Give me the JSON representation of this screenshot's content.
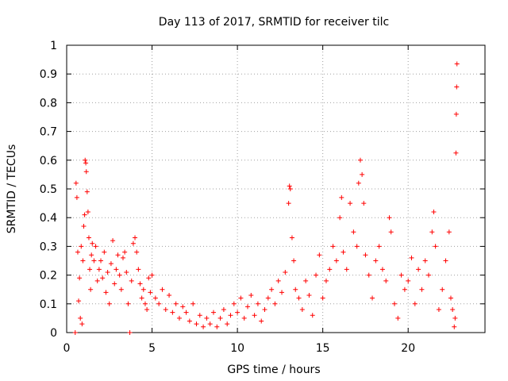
{
  "chart_data": {
    "type": "scatter",
    "title": "Day 113 of 2017, SRMTID for receiver tilc",
    "xlabel": "GPS time / hours",
    "ylabel": "SRMTID / TECUs",
    "xlim": [
      0,
      24.5
    ],
    "ylim": [
      0,
      1
    ],
    "xticks": [
      0,
      5,
      10,
      15,
      20
    ],
    "xtick_labels": [
      "0",
      "5",
      "10",
      "15",
      "20"
    ],
    "yticks": [
      0,
      0.1,
      0.2,
      0.3,
      0.4,
      0.5,
      0.6,
      0.7,
      0.8,
      0.9,
      1
    ],
    "ytick_labels": [
      "0",
      "0.1",
      "0.2",
      "0.3",
      "0.4",
      "0.5",
      "0.6",
      "0.7",
      "0.8",
      "0.9",
      "1"
    ],
    "grid": true,
    "marker": "+",
    "color": "#ff0000",
    "series": [
      {
        "name": "SRMTID",
        "points": [
          [
            0.5,
            0.0
          ],
          [
            0.55,
            0.52
          ],
          [
            0.6,
            0.47
          ],
          [
            0.65,
            0.28
          ],
          [
            0.7,
            0.11
          ],
          [
            0.75,
            0.19
          ],
          [
            0.8,
            0.05
          ],
          [
            0.85,
            0.3
          ],
          [
            0.9,
            0.03
          ],
          [
            0.95,
            0.25
          ],
          [
            1.0,
            0.37
          ],
          [
            1.05,
            0.41
          ],
          [
            1.08,
            0.6
          ],
          [
            1.12,
            0.59
          ],
          [
            1.15,
            0.56
          ],
          [
            1.2,
            0.49
          ],
          [
            1.25,
            0.42
          ],
          [
            1.3,
            0.33
          ],
          [
            1.35,
            0.22
          ],
          [
            1.4,
            0.15
          ],
          [
            1.45,
            0.27
          ],
          [
            1.5,
            0.31
          ],
          [
            1.6,
            0.25
          ],
          [
            1.7,
            0.3
          ],
          [
            1.8,
            0.18
          ],
          [
            1.9,
            0.22
          ],
          [
            2.0,
            0.25
          ],
          [
            2.1,
            0.19
          ],
          [
            2.2,
            0.28
          ],
          [
            2.3,
            0.14
          ],
          [
            2.4,
            0.21
          ],
          [
            2.5,
            0.1
          ],
          [
            2.6,
            0.24
          ],
          [
            2.7,
            0.32
          ],
          [
            2.8,
            0.17
          ],
          [
            2.9,
            0.22
          ],
          [
            3.0,
            0.27
          ],
          [
            3.1,
            0.2
          ],
          [
            3.2,
            0.15
          ],
          [
            3.3,
            0.26
          ],
          [
            3.4,
            0.28
          ],
          [
            3.5,
            0.21
          ],
          [
            3.6,
            0.1
          ],
          [
            3.7,
            0.0
          ],
          [
            3.8,
            0.18
          ],
          [
            3.9,
            0.31
          ],
          [
            4.0,
            0.33
          ],
          [
            4.1,
            0.28
          ],
          [
            4.2,
            0.22
          ],
          [
            4.3,
            0.17
          ],
          [
            4.4,
            0.12
          ],
          [
            4.5,
            0.15
          ],
          [
            4.6,
            0.1
          ],
          [
            4.7,
            0.08
          ],
          [
            4.8,
            0.19
          ],
          [
            4.9,
            0.14
          ],
          [
            5.0,
            0.2
          ],
          [
            5.2,
            0.12
          ],
          [
            5.4,
            0.1
          ],
          [
            5.6,
            0.15
          ],
          [
            5.8,
            0.08
          ],
          [
            6.0,
            0.13
          ],
          [
            6.2,
            0.07
          ],
          [
            6.4,
            0.1
          ],
          [
            6.6,
            0.05
          ],
          [
            6.8,
            0.09
          ],
          [
            7.0,
            0.07
          ],
          [
            7.2,
            0.04
          ],
          [
            7.4,
            0.1
          ],
          [
            7.6,
            0.03
          ],
          [
            7.8,
            0.06
          ],
          [
            8.0,
            0.02
          ],
          [
            8.2,
            0.05
          ],
          [
            8.4,
            0.03
          ],
          [
            8.6,
            0.07
          ],
          [
            8.8,
            0.02
          ],
          [
            9.0,
            0.05
          ],
          [
            9.2,
            0.08
          ],
          [
            9.4,
            0.03
          ],
          [
            9.6,
            0.06
          ],
          [
            9.8,
            0.1
          ],
          [
            10.0,
            0.07
          ],
          [
            10.2,
            0.12
          ],
          [
            10.4,
            0.05
          ],
          [
            10.6,
            0.09
          ],
          [
            10.8,
            0.13
          ],
          [
            11.0,
            0.06
          ],
          [
            11.2,
            0.1
          ],
          [
            11.4,
            0.04
          ],
          [
            11.6,
            0.08
          ],
          [
            11.8,
            0.12
          ],
          [
            12.0,
            0.15
          ],
          [
            12.2,
            0.1
          ],
          [
            12.4,
            0.18
          ],
          [
            12.6,
            0.14
          ],
          [
            12.8,
            0.21
          ],
          [
            13.0,
            0.45
          ],
          [
            13.05,
            0.51
          ],
          [
            13.1,
            0.5
          ],
          [
            13.2,
            0.33
          ],
          [
            13.3,
            0.25
          ],
          [
            13.4,
            0.15
          ],
          [
            13.6,
            0.12
          ],
          [
            13.8,
            0.08
          ],
          [
            14.0,
            0.18
          ],
          [
            14.2,
            0.13
          ],
          [
            14.4,
            0.06
          ],
          [
            14.6,
            0.2
          ],
          [
            14.8,
            0.27
          ],
          [
            15.0,
            0.12
          ],
          [
            15.2,
            0.18
          ],
          [
            15.4,
            0.22
          ],
          [
            15.6,
            0.3
          ],
          [
            15.8,
            0.25
          ],
          [
            16.0,
            0.4
          ],
          [
            16.1,
            0.47
          ],
          [
            16.2,
            0.28
          ],
          [
            16.4,
            0.22
          ],
          [
            16.6,
            0.45
          ],
          [
            16.8,
            0.35
          ],
          [
            17.0,
            0.3
          ],
          [
            17.1,
            0.52
          ],
          [
            17.2,
            0.6
          ],
          [
            17.3,
            0.55
          ],
          [
            17.4,
            0.45
          ],
          [
            17.5,
            0.27
          ],
          [
            17.7,
            0.2
          ],
          [
            17.9,
            0.12
          ],
          [
            18.1,
            0.25
          ],
          [
            18.3,
            0.3
          ],
          [
            18.5,
            0.22
          ],
          [
            18.7,
            0.18
          ],
          [
            18.9,
            0.4
          ],
          [
            19.0,
            0.35
          ],
          [
            19.2,
            0.1
          ],
          [
            19.4,
            0.05
          ],
          [
            19.6,
            0.2
          ],
          [
            19.8,
            0.15
          ],
          [
            20.0,
            0.18
          ],
          [
            20.2,
            0.26
          ],
          [
            20.4,
            0.1
          ],
          [
            20.6,
            0.22
          ],
          [
            20.8,
            0.15
          ],
          [
            21.0,
            0.25
          ],
          [
            21.2,
            0.2
          ],
          [
            21.4,
            0.35
          ],
          [
            21.5,
            0.42
          ],
          [
            21.6,
            0.3
          ],
          [
            21.8,
            0.08
          ],
          [
            22.0,
            0.15
          ],
          [
            22.2,
            0.25
          ],
          [
            22.4,
            0.35
          ],
          [
            22.5,
            0.12
          ],
          [
            22.6,
            0.08
          ],
          [
            22.7,
            0.02
          ],
          [
            22.75,
            0.05
          ],
          [
            22.8,
            0.625
          ],
          [
            22.82,
            0.76
          ],
          [
            22.84,
            0.855
          ],
          [
            22.86,
            0.935
          ]
        ]
      }
    ]
  }
}
